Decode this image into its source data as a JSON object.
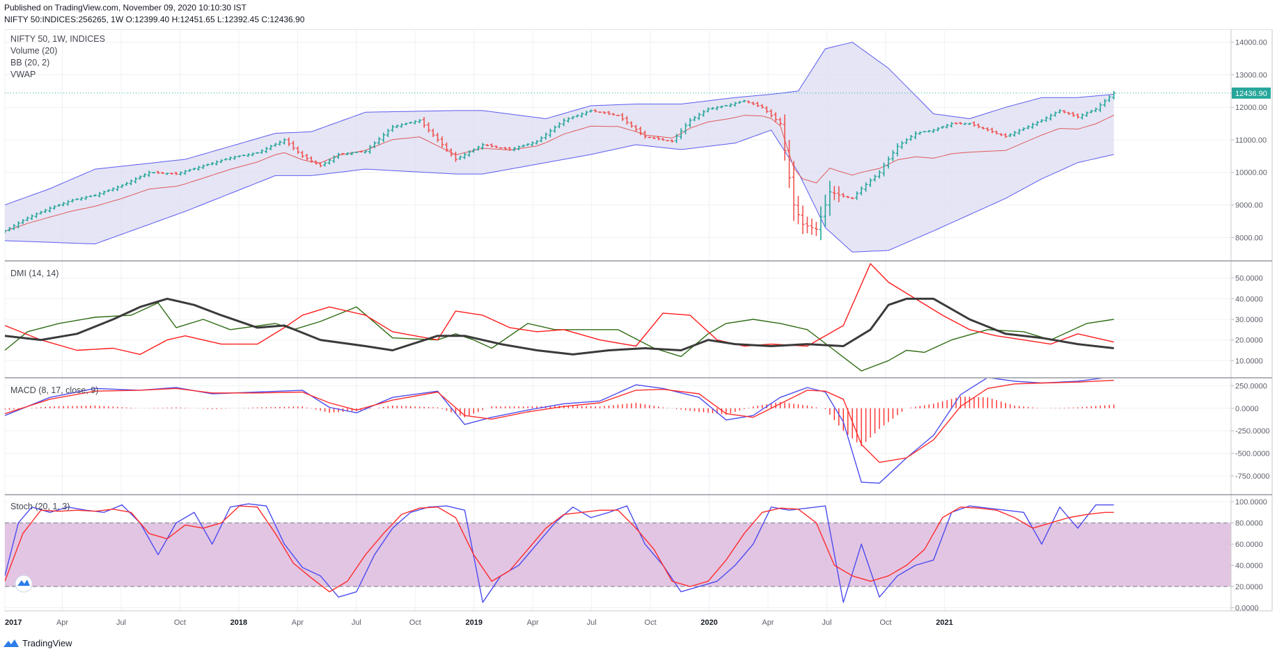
{
  "header": {
    "published": "Published on TradingView.com, November 09, 2020 10:10:30 IST",
    "ohlc": "NIFTY 50:INDICES:256265, 1W O:12399.40 H:12451.65 L:12392.45 C:12436.90"
  },
  "footer": {
    "brand": "TradingView",
    "icon": "tradingview-logo-icon"
  },
  "colors": {
    "up": "#26a69a",
    "down": "#ef5350",
    "bb_basis": "#e05a5a",
    "bb_band": "#5b5bf0",
    "bb_fill": "#dcdcf2",
    "dmi_plus": "#2e6b12",
    "dmi_minus": "#ff1a1a",
    "adx": "#3a3a3a",
    "macd": "#4b4bf0",
    "signal": "#ff2a2a",
    "stoch_k": "#4b4bf0",
    "stoch_d": "#ff2a2a",
    "stoch_band": "#dfbfe0",
    "price_tag": "#26a69a"
  },
  "chart_data": [
    {
      "type": "ohlc",
      "title": "NIFTY 50, 1W, INDICES",
      "legend": [
        "NIFTY 50, 1W, INDICES",
        "Volume (20)",
        "BB (20, 2)",
        "VWAP"
      ],
      "x_axis": [
        "2017",
        "Apr",
        "Jul",
        "Oct",
        "2018",
        "Apr",
        "Jul",
        "Oct",
        "2019",
        "Apr",
        "Jul",
        "Oct",
        "2020",
        "Apr",
        "Jul",
        "Oct",
        "2021"
      ],
      "y_ticks": [
        "14000.00",
        "13000.00",
        "12000.00",
        "11000.00",
        "10000.00",
        "9000.00",
        "8000.00"
      ],
      "ylim": [
        7300,
        14400
      ],
      "last_price": "12436.90",
      "close_anchors": {
        "x": [
          0,
          5,
          10,
          15,
          20,
          26,
          32,
          38,
          44,
          50,
          56,
          62,
          66,
          70,
          74,
          80,
          86,
          92,
          100,
          106,
          112,
          118,
          124,
          130,
          136,
          142,
          148,
          152,
          156,
          160,
          164,
          168,
          172,
          175,
          177,
          180,
          182,
          183,
          185,
          188,
          190,
          194,
          198,
          202,
          206,
          210,
          214,
          218,
          222,
          226,
          230,
          234,
          238,
          242,
          246
        ],
        "y": [
          8200,
          8600,
          8900,
          9150,
          9300,
          9600,
          10000,
          9950,
          10200,
          10450,
          10600,
          11000,
          10500,
          10200,
          10550,
          10650,
          11400,
          11600,
          10400,
          10850,
          10700,
          10950,
          11600,
          11900,
          11750,
          11100,
          10950,
          11600,
          11950,
          12050,
          12200,
          12000,
          11500,
          9000,
          8400,
          8250,
          9000,
          9400,
          9300,
          9200,
          9500,
          10000,
          10800,
          11200,
          11300,
          11500,
          11500,
          11300,
          11100,
          11350,
          11600,
          11900,
          11700,
          11950,
          12436.9
        ]
      },
      "bb_lower_anchors": {
        "x": [
          0,
          10,
          20,
          40,
          60,
          68,
          80,
          100,
          106,
          120,
          130,
          140,
          150,
          162,
          170,
          176,
          182,
          188,
          196,
          206,
          214,
          222,
          230,
          238,
          246
        ],
        "y": [
          7900,
          7850,
          7800,
          8800,
          9900,
          9900,
          10100,
          9950,
          9950,
          10300,
          10550,
          10850,
          10700,
          10900,
          11300,
          10000,
          8300,
          7550,
          7600,
          8200,
          8700,
          9200,
          9800,
          10300,
          10550
        ]
      },
      "bb_upper_anchors": {
        "x": [
          0,
          10,
          20,
          40,
          60,
          68,
          80,
          100,
          106,
          120,
          130,
          140,
          150,
          162,
          170,
          176,
          182,
          188,
          196,
          206,
          214,
          222,
          230,
          238,
          246
        ],
        "y": [
          9000,
          9500,
          10100,
          10400,
          11200,
          11250,
          11850,
          11900,
          11900,
          11650,
          12050,
          12100,
          12100,
          12300,
          12400,
          12500,
          13800,
          14000,
          13200,
          11800,
          11650,
          12000,
          12300,
          12300,
          12400
        ]
      }
    },
    {
      "type": "line",
      "title": "DMI (14, 14)",
      "y_ticks": [
        "50.0000",
        "40.0000",
        "30.0000",
        "20.0000",
        "10.0000"
      ],
      "ylim": [
        2,
        58
      ],
      "series": [
        {
          "name": "+DI",
          "x": [
            0,
            5,
            12,
            20,
            28,
            34,
            38,
            44,
            50,
            60,
            64,
            70,
            78,
            86,
            96,
            100,
            104,
            108,
            116,
            122,
            130,
            136,
            144,
            150,
            156,
            160,
            166,
            172,
            178,
            184,
            190,
            196,
            200,
            204,
            210,
            218,
            226,
            232,
            240,
            246
          ],
          "y": [
            15,
            24,
            28,
            31,
            32,
            38,
            26,
            30,
            25,
            28,
            25,
            29,
            36,
            21,
            20,
            23,
            20,
            16,
            28,
            25,
            25,
            25,
            16,
            12,
            23,
            28,
            30,
            28,
            25,
            15,
            5,
            10,
            15,
            14,
            20,
            25,
            24,
            20,
            28,
            30
          ]
        },
        {
          "name": "-DI",
          "x": [
            0,
            8,
            16,
            24,
            30,
            36,
            40,
            48,
            56,
            62,
            66,
            72,
            80,
            86,
            96,
            100,
            106,
            112,
            118,
            124,
            132,
            140,
            146,
            152,
            158,
            164,
            170,
            178,
            186,
            192,
            196,
            202,
            208,
            214,
            220,
            226,
            232,
            238,
            246
          ],
          "y": [
            27,
            20,
            15,
            16,
            13,
            20,
            22,
            18,
            18,
            26,
            32,
            36,
            32,
            24,
            20,
            34,
            32,
            26,
            24,
            25,
            20,
            17,
            33,
            32,
            20,
            17,
            18,
            17,
            27,
            57,
            48,
            40,
            32,
            25,
            22,
            20,
            18,
            23,
            19
          ]
        },
        {
          "name": "ADX",
          "x": [
            0,
            8,
            16,
            24,
            30,
            36,
            42,
            48,
            56,
            62,
            70,
            80,
            86,
            96,
            102,
            110,
            118,
            126,
            134,
            142,
            150,
            156,
            162,
            170,
            178,
            186,
            192,
            196,
            200,
            206,
            214,
            222,
            230,
            238,
            246
          ],
          "y": [
            22,
            20,
            23,
            30,
            36,
            40,
            37,
            32,
            26,
            27,
            20,
            17,
            15,
            22,
            22,
            18,
            15,
            13,
            15,
            16,
            15,
            20,
            18,
            17,
            18,
            17,
            25,
            37,
            40,
            40,
            30,
            23,
            21,
            18,
            16
          ]
        }
      ]
    },
    {
      "type": "line",
      "title": "MACD (8, 17, close, 9)",
      "y_ticks": [
        "250.0000",
        "0.0000",
        "-250.0000",
        "-500.0000",
        "-750.0000"
      ],
      "ylim": [
        -950,
        330
      ],
      "series": [
        {
          "name": "MACD",
          "x": [
            0,
            10,
            20,
            30,
            38,
            46,
            56,
            66,
            72,
            78,
            86,
            96,
            102,
            108,
            116,
            124,
            132,
            140,
            146,
            154,
            160,
            166,
            172,
            178,
            182,
            186,
            190,
            194,
            200,
            206,
            212,
            218,
            224,
            230,
            238,
            246
          ],
          "y": [
            -80,
            120,
            220,
            200,
            230,
            160,
            180,
            200,
            10,
            -50,
            120,
            190,
            -180,
            -100,
            -20,
            50,
            80,
            260,
            220,
            120,
            -130,
            -80,
            120,
            230,
            180,
            -150,
            -820,
            -830,
            -550,
            -300,
            150,
            340,
            300,
            280,
            300,
            350
          ]
        },
        {
          "name": "Signal",
          "x": [
            0,
            10,
            20,
            30,
            38,
            46,
            56,
            66,
            72,
            78,
            86,
            96,
            102,
            108,
            116,
            124,
            132,
            140,
            146,
            154,
            160,
            166,
            172,
            178,
            182,
            186,
            190,
            194,
            200,
            206,
            212,
            218,
            224,
            230,
            238,
            246
          ],
          "y": [
            -60,
            100,
            190,
            200,
            220,
            170,
            170,
            180,
            60,
            -20,
            90,
            180,
            -80,
            -120,
            -40,
            20,
            60,
            200,
            210,
            160,
            -60,
            -100,
            50,
            200,
            190,
            100,
            -400,
            -600,
            -550,
            -350,
            20,
            220,
            270,
            280,
            290,
            310
          ]
        }
      ]
    },
    {
      "type": "line",
      "title": "Stoch (20, 1, 3)",
      "y_ticks": [
        "100.0000",
        "80.0000",
        "60.0000",
        "40.0000",
        "20.0000",
        "0.0000"
      ],
      "ylim": [
        -3,
        106
      ],
      "overbought": 80,
      "oversold": 20,
      "series": [
        {
          "name": "%K",
          "x": [
            0,
            3,
            6,
            10,
            14,
            18,
            22,
            26,
            30,
            34,
            38,
            42,
            46,
            50,
            54,
            58,
            62,
            66,
            70,
            74,
            78,
            82,
            86,
            90,
            94,
            98,
            102,
            106,
            110,
            114,
            118,
            122,
            126,
            130,
            134,
            138,
            142,
            146,
            150,
            154,
            158,
            162,
            166,
            170,
            174,
            178,
            182,
            186,
            190,
            194,
            198,
            202,
            206,
            210,
            214,
            218,
            222,
            226,
            230,
            234,
            238,
            242,
            246
          ],
          "y": [
            30,
            80,
            95,
            90,
            95,
            92,
            90,
            97,
            80,
            50,
            80,
            90,
            60,
            95,
            98,
            96,
            60,
            38,
            30,
            10,
            15,
            50,
            75,
            90,
            95,
            96,
            92,
            5,
            30,
            40,
            60,
            80,
            95,
            85,
            90,
            96,
            60,
            40,
            15,
            20,
            25,
            40,
            60,
            95,
            92,
            94,
            96,
            5,
            60,
            10,
            30,
            40,
            45,
            90,
            96,
            94,
            92,
            90,
            60,
            95,
            75,
            97,
            97
          ]
        },
        {
          "name": "%D",
          "x": [
            0,
            4,
            8,
            12,
            16,
            20,
            24,
            28,
            32,
            36,
            40,
            44,
            48,
            52,
            56,
            60,
            64,
            68,
            72,
            76,
            80,
            84,
            88,
            92,
            96,
            100,
            104,
            108,
            112,
            116,
            120,
            124,
            128,
            132,
            136,
            140,
            144,
            148,
            152,
            156,
            160,
            164,
            168,
            172,
            176,
            180,
            184,
            188,
            192,
            196,
            200,
            204,
            208,
            212,
            216,
            220,
            224,
            228,
            232,
            236,
            240,
            244,
            246
          ],
          "y": [
            25,
            70,
            92,
            91,
            92,
            91,
            93,
            90,
            70,
            65,
            78,
            75,
            80,
            96,
            95,
            70,
            42,
            28,
            15,
            25,
            50,
            70,
            88,
            94,
            95,
            85,
            50,
            25,
            35,
            55,
            75,
            88,
            90,
            92,
            92,
            75,
            55,
            25,
            20,
            25,
            45,
            70,
            90,
            94,
            93,
            80,
            40,
            30,
            25,
            30,
            40,
            55,
            85,
            95,
            94,
            92,
            85,
            75,
            80,
            85,
            88,
            90,
            90
          ]
        }
      ]
    }
  ]
}
